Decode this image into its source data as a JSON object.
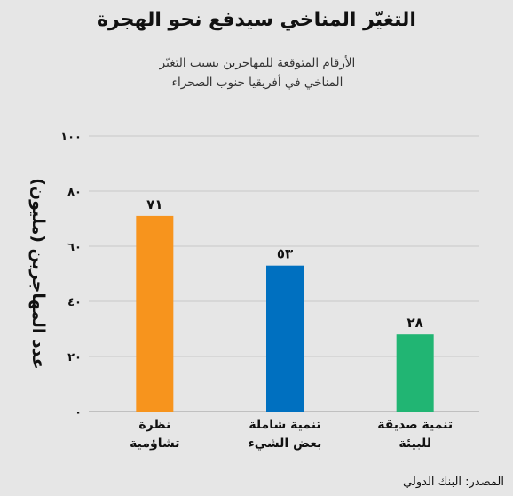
{
  "chart_data": {
    "type": "bar",
    "title": "التغيّر المناخي سيدفع نحو الهجرة",
    "subtitle_lines": [
      "الأرقام المتوقعة للمهاجرين بسبب التغيّر",
      "المناخي في أفريقيا جنوب الصحراء"
    ],
    "ylabel": "عدد المهاجرين (مليون)",
    "ylim": [
      0,
      100
    ],
    "yticks": [
      0,
      20,
      40,
      60,
      80,
      100
    ],
    "ytick_labels": [
      "٠",
      "٢٠",
      "٤٠",
      "٦٠",
      "٨٠",
      "١٠٠"
    ],
    "grid": true,
    "categories": [
      [
        "نظرة",
        "تشاؤمية"
      ],
      [
        "تنمية شاملة",
        "بعض الشيء"
      ],
      [
        "تنمية صديقة",
        "للبيئة"
      ]
    ],
    "values": [
      71,
      53,
      28
    ],
    "value_labels": [
      "٧١",
      "٥٣",
      "٢٨"
    ],
    "colors": [
      "#f7941d",
      "#0070c0",
      "#21b573"
    ]
  },
  "source": "المصدر: البنك الدولي"
}
